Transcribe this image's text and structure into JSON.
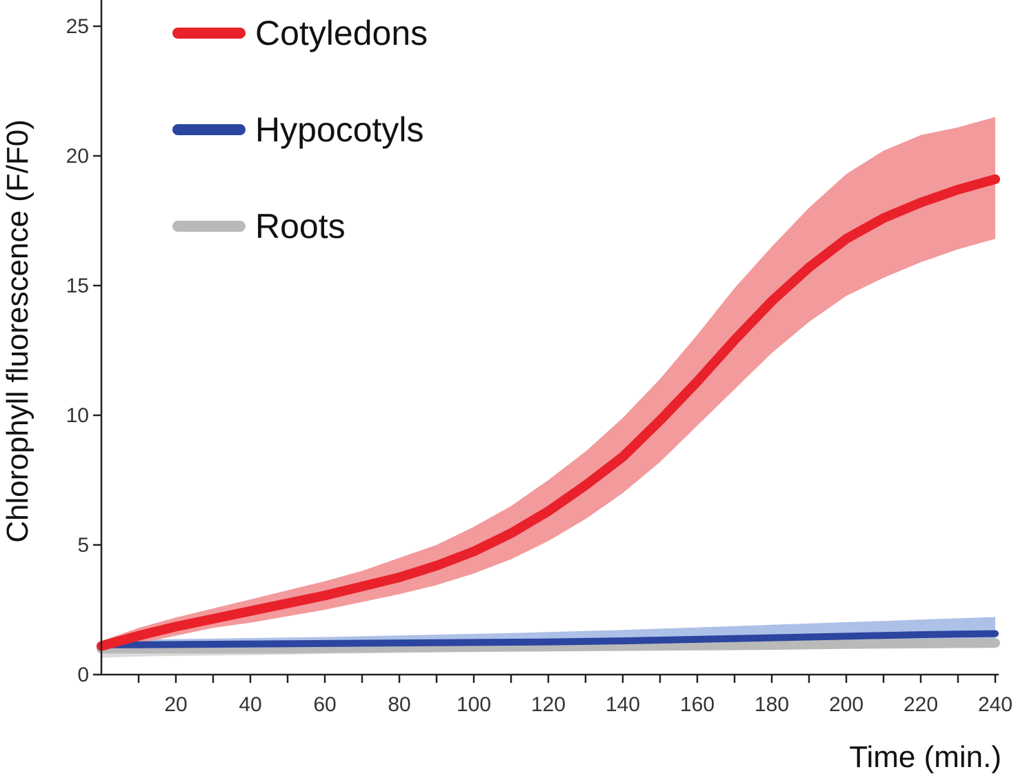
{
  "chart_data": {
    "type": "line",
    "title": "",
    "xlabel": "Time (min.)",
    "ylabel": "Chlorophyll fluorescence (F/F0)",
    "xlim": [
      0,
      240
    ],
    "ylim": [
      0,
      25
    ],
    "x_ticks": [
      20,
      40,
      60,
      80,
      100,
      120,
      140,
      160,
      180,
      200,
      220,
      240
    ],
    "x_tick_labels": [
      "20",
      "40",
      "60",
      "80",
      "100",
      "120",
      "140",
      "160",
      "180",
      "200",
      "220",
      "240"
    ],
    "y_ticks": [
      0,
      5,
      10,
      15,
      20,
      25
    ],
    "y_tick_labels": [
      "0",
      "5",
      "10",
      "15",
      "20",
      "25"
    ],
    "grid": false,
    "legend_position": "top-left",
    "x": [
      0,
      10,
      20,
      30,
      40,
      50,
      60,
      70,
      80,
      90,
      100,
      110,
      120,
      130,
      140,
      150,
      160,
      170,
      180,
      190,
      200,
      210,
      220,
      230,
      240
    ],
    "series": [
      {
        "name": "Cotyledons",
        "color": "#e8212b",
        "band_color": "#f29597",
        "values": [
          1.1,
          1.5,
          1.85,
          2.15,
          2.45,
          2.75,
          3.05,
          3.4,
          3.75,
          4.2,
          4.75,
          5.45,
          6.3,
          7.3,
          8.4,
          9.8,
          11.3,
          12.9,
          14.4,
          15.7,
          16.8,
          17.6,
          18.2,
          18.7,
          19.1
        ],
        "upper": [
          1.3,
          1.8,
          2.2,
          2.55,
          2.9,
          3.25,
          3.6,
          4.0,
          4.5,
          5.0,
          5.7,
          6.5,
          7.5,
          8.6,
          9.9,
          11.4,
          13.1,
          14.9,
          16.5,
          18.0,
          19.3,
          20.2,
          20.8,
          21.1,
          21.5
        ],
        "lower": [
          0.9,
          1.2,
          1.5,
          1.8,
          2.0,
          2.25,
          2.5,
          2.8,
          3.1,
          3.45,
          3.9,
          4.45,
          5.15,
          6.0,
          7.0,
          8.2,
          9.6,
          11.0,
          12.4,
          13.6,
          14.6,
          15.3,
          15.9,
          16.4,
          16.8
        ],
        "linewidth": 14
      },
      {
        "name": "Hypocotyls",
        "color": "#2b45a0",
        "band_color": "#a9bde6",
        "values": [
          1.15,
          1.15,
          1.16,
          1.17,
          1.18,
          1.19,
          1.2,
          1.21,
          1.22,
          1.23,
          1.24,
          1.25,
          1.26,
          1.28,
          1.3,
          1.33,
          1.36,
          1.39,
          1.42,
          1.45,
          1.48,
          1.51,
          1.54,
          1.56,
          1.58
        ],
        "upper": [
          1.3,
          1.35,
          1.37,
          1.39,
          1.41,
          1.43,
          1.45,
          1.48,
          1.51,
          1.54,
          1.57,
          1.6,
          1.64,
          1.68,
          1.72,
          1.77,
          1.82,
          1.87,
          1.92,
          1.97,
          2.02,
          2.07,
          2.12,
          2.17,
          2.22
        ],
        "lower": [
          1.0,
          0.98,
          0.98,
          0.98,
          0.98,
          0.98,
          0.98,
          0.98,
          0.98,
          0.98,
          0.98,
          0.98,
          0.98,
          0.98,
          0.98,
          1.0,
          1.0,
          1.02,
          1.02,
          1.03,
          1.03,
          1.04,
          1.04,
          1.05,
          1.05
        ],
        "linewidth": 10
      },
      {
        "name": "Roots",
        "color": "#b9b9b9",
        "band_color": "#d9d9d9",
        "values": [
          1.0,
          1.0,
          1.0,
          1.0,
          1.0,
          1.0,
          1.02,
          1.03,
          1.04,
          1.05,
          1.06,
          1.07,
          1.08,
          1.09,
          1.1,
          1.11,
          1.12,
          1.13,
          1.14,
          1.16,
          1.18,
          1.19,
          1.2,
          1.21,
          1.22
        ],
        "upper": [
          1.2,
          1.15,
          1.15,
          1.15,
          1.15,
          1.15,
          1.16,
          1.17,
          1.18,
          1.19,
          1.2,
          1.21,
          1.22,
          1.23,
          1.24,
          1.25,
          1.26,
          1.27,
          1.28,
          1.3,
          1.32,
          1.33,
          1.34,
          1.35,
          1.36
        ],
        "lower": [
          0.65,
          0.7,
          0.72,
          0.74,
          0.75,
          0.77,
          0.8,
          0.82,
          0.84,
          0.86,
          0.88,
          0.9,
          0.92,
          0.93,
          0.95,
          0.96,
          0.97,
          0.98,
          0.99,
          1.0,
          1.01,
          1.02,
          1.03,
          1.04,
          1.05
        ],
        "linewidth": 14
      }
    ]
  }
}
